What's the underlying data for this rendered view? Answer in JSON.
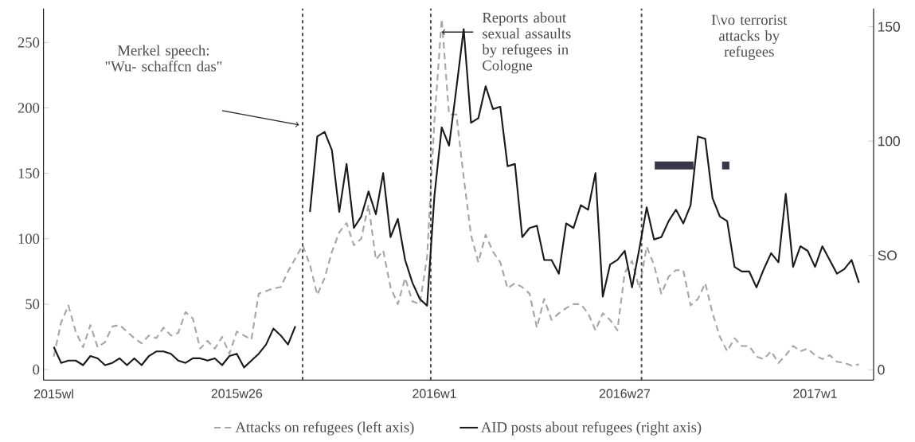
{
  "chart_data": {
    "type": "line",
    "categories": [
      "2015wl",
      null,
      null,
      null,
      null,
      null,
      null,
      null,
      null,
      null,
      null,
      null,
      null,
      null,
      null,
      null,
      null,
      null,
      null,
      null,
      null,
      null,
      null,
      null,
      null,
      "2015w26",
      null,
      null,
      null,
      null,
      null,
      null,
      null,
      null,
      null,
      null,
      null,
      null,
      null,
      null,
      null,
      null,
      null,
      null,
      null,
      null,
      null,
      null,
      null,
      null,
      null,
      null,
      "2016w1",
      null,
      null,
      null,
      null,
      null,
      null,
      null,
      null,
      null,
      null,
      null,
      null,
      null,
      null,
      null,
      null,
      null,
      null,
      null,
      null,
      null,
      null,
      null,
      null,
      null,
      "2016w27",
      null,
      null,
      null,
      null,
      null,
      null,
      null,
      null,
      null,
      null,
      null,
      null,
      null,
      null,
      null,
      null,
      null,
      null,
      null,
      null,
      null,
      null,
      null,
      null,
      null,
      "2017w1",
      null,
      null,
      null,
      null,
      null,
      null
    ],
    "series": [
      {
        "name": "Attacks on refugees (left axis)",
        "color": "#a6a6a6",
        "axis": "y",
        "line_style": "dashed",
        "values": [
          10,
          36,
          49,
          29,
          17,
          34,
          17,
          21,
          33,
          34,
          29,
          24,
          20,
          26,
          24,
          32,
          26,
          28,
          44,
          39,
          16,
          22,
          16,
          25,
          12,
          29,
          26,
          23,
          58,
          60,
          62,
          63,
          75,
          85,
          95,
          80,
          57,
          70,
          90,
          105,
          112,
          95,
          100,
          126,
          84,
          91,
          63,
          50,
          70,
          52,
          50,
          86,
          190,
          268,
          195,
          195,
          147,
          103,
          82,
          103,
          90,
          82,
          62,
          66,
          63,
          58,
          32,
          54,
          38,
          43,
          47,
          50,
          50,
          43,
          30,
          43,
          38,
          30,
          74,
          83,
          62,
          94,
          80,
          58,
          71,
          76,
          76,
          49,
          54,
          66,
          43,
          25,
          14,
          24,
          18,
          18,
          10,
          8,
          14,
          5,
          11,
          18,
          14,
          16,
          11,
          8,
          11,
          6,
          5,
          3,
          4
        ]
      },
      {
        "name": "AID posts about refugees (right axis)",
        "color": "#1a1a1a",
        "axis": "y2",
        "line_style": "solid",
        "values": [
          10,
          3,
          4,
          4,
          2,
          6,
          5,
          2,
          3,
          5,
          2,
          5,
          2,
          6,
          8,
          8,
          7,
          4,
          3,
          5,
          5,
          4,
          5,
          2,
          6,
          7,
          1,
          4,
          7,
          11,
          18,
          15,
          11,
          19,
          null,
          69,
          102,
          104,
          96,
          69,
          90,
          62,
          67,
          78,
          68,
          86,
          58,
          66,
          48,
          38,
          31,
          28,
          76,
          106,
          98,
          123,
          149,
          108,
          110,
          124,
          114,
          115,
          89,
          90,
          58,
          62,
          63,
          48,
          48,
          42,
          64,
          62,
          72,
          70,
          86,
          32,
          46,
          48,
          52,
          36,
          53,
          71,
          57,
          58,
          65,
          70,
          64,
          72,
          102,
          101,
          75,
          67,
          65,
          45,
          43,
          43,
          36,
          44,
          51,
          47,
          77,
          45,
          54,
          52,
          45,
          54,
          48,
          42,
          44,
          48,
          38
        ]
      }
    ],
    "ylim": [
      -8,
      276
    ],
    "yticks": [
      0,
      50,
      100,
      150,
      200,
      250
    ],
    "y2lim": [
      -4.5,
      158
    ],
    "y2ticks": [
      0,
      {
        "value": 50,
        "label": "SO"
      },
      100,
      150
    ],
    "annotations": [
      "Merkel speech: \"Wu- schaffcn das\"",
      "Reports about sexual assaults by refugees in Cologne",
      "I\\vo terrorist attacks by refugees"
    ],
    "legend": "bottom",
    "marker": "none",
    "grid": false
  }
}
